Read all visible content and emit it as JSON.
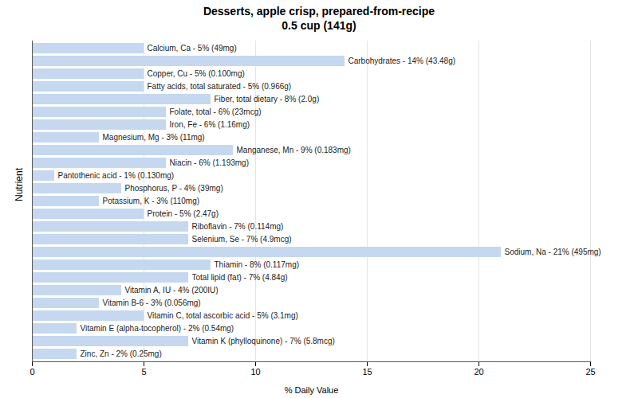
{
  "chart_data": {
    "type": "bar",
    "orientation": "horizontal",
    "title": "Desserts, apple crisp, prepared-from-recipe\n0.5 cup (141g)",
    "xlabel": "% Daily Value",
    "ylabel": "Nutrient",
    "categories": [
      "Calcium, Ca - 5% (49mg)",
      "Carbohydrates - 14% (43.48g)",
      "Copper, Cu - 5% (0.100mg)",
      "Fatty acids, total saturated - 5% (0.966g)",
      "Fiber, total dietary - 8% (2.0g)",
      "Folate, total - 6% (23mcg)",
      "Iron, Fe - 6% (1.16mg)",
      "Magnesium, Mg - 3% (11mg)",
      "Manganese, Mn - 9% (0.183mg)",
      "Niacin - 6% (1.193mg)",
      "Pantothenic acid - 1% (0.130mg)",
      "Phosphorus, P - 4% (39mg)",
      "Potassium, K - 3% (110mg)",
      "Protein - 5% (2.47g)",
      "Riboflavin - 7% (0.114mg)",
      "Selenium, Se - 7% (4.9mcg)",
      "Sodium, Na - 21% (495mg)",
      "Thiamin - 8% (0.117mg)",
      "Total lipid (fat) - 7% (4.84g)",
      "Vitamin A, IU - 4% (200IU)",
      "Vitamin B-6 - 3% (0.056mg)",
      "Vitamin C, total ascorbic acid - 5% (3.1mg)",
      "Vitamin E (alpha-tocopherol) - 2% (0.54mg)",
      "Vitamin K (phylloquinone) - 7% (5.8mcg)",
      "Zinc, Zn - 2% (0.25mg)"
    ],
    "values": [
      5,
      14,
      5,
      5,
      8,
      6,
      6,
      3,
      9,
      6,
      1,
      4,
      3,
      5,
      7,
      7,
      21,
      8,
      7,
      4,
      3,
      5,
      2,
      7,
      2
    ],
    "color": "#c5d8f0",
    "xlim": [
      0,
      25
    ],
    "xticks": [
      0,
      5,
      10,
      15,
      20,
      25
    ],
    "grid": true,
    "tick_labels": "x"
  }
}
